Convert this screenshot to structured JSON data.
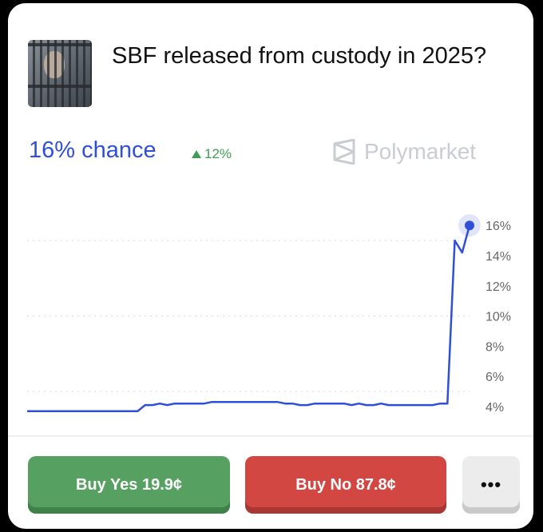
{
  "header": {
    "title": "SBF released from custody in 2025?",
    "thumbnail_icon": "market-thumbnail-image"
  },
  "summary": {
    "chance": "16% chance",
    "change": "12%",
    "change_direction": "up",
    "brand": "Polymarket"
  },
  "colors": {
    "line": "#2f4fd8",
    "yes": "#56a062",
    "no": "#d24742",
    "change": "#3f9b55"
  },
  "chart_data": {
    "type": "line",
    "title": "",
    "xlabel": "",
    "ylabel": "",
    "ylim": [
      4,
      16
    ],
    "yticks": [
      "16%",
      "14%",
      "12%",
      "10%",
      "8%",
      "6%",
      "4%"
    ],
    "ytick_values": [
      16,
      14,
      12,
      10,
      8,
      6,
      4
    ],
    "gridlines": [
      15,
      10,
      5
    ],
    "y_axis_position": "right",
    "values": [
      3.7,
      3.7,
      3.7,
      3.7,
      3.7,
      3.7,
      3.7,
      3.7,
      3.7,
      3.7,
      3.7,
      3.7,
      3.7,
      3.7,
      3.7,
      3.7,
      4.1,
      4.1,
      4.2,
      4.1,
      4.2,
      4.2,
      4.2,
      4.2,
      4.2,
      4.3,
      4.3,
      4.3,
      4.3,
      4.3,
      4.3,
      4.3,
      4.3,
      4.3,
      4.3,
      4.2,
      4.2,
      4.1,
      4.1,
      4.2,
      4.2,
      4.2,
      4.2,
      4.2,
      4.1,
      4.2,
      4.1,
      4.1,
      4.2,
      4.1,
      4.1,
      4.1,
      4.1,
      4.1,
      4.1,
      4.1,
      4.2,
      4.2,
      15.0,
      14.2,
      16.0
    ],
    "current_value": 16
  },
  "actions": {
    "buy_yes": "Buy Yes 19.9¢",
    "buy_no": "Buy No 87.8¢",
    "more": "•••"
  }
}
